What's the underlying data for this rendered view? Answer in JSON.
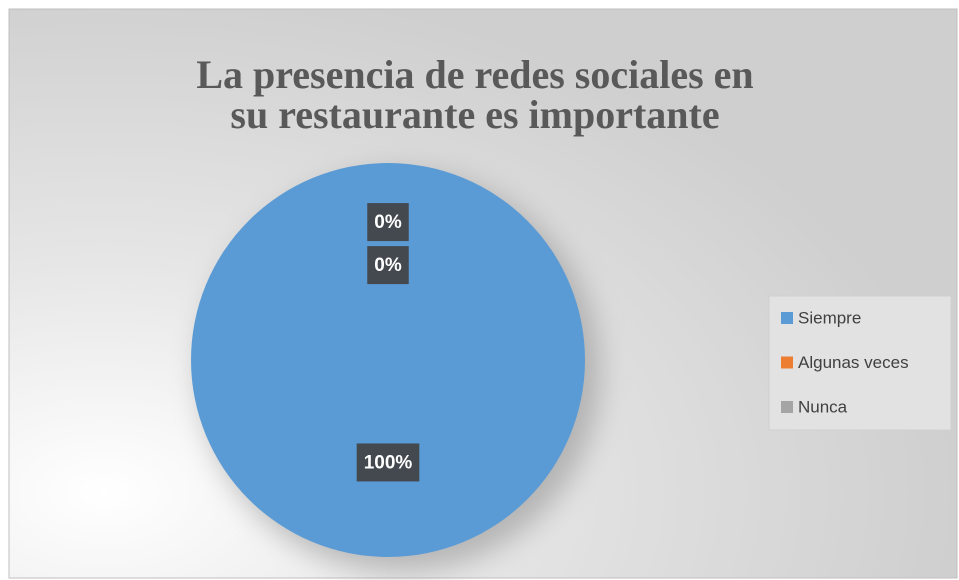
{
  "chart_data": {
    "type": "pie",
    "title": "La presencia de redes sociales en su restaurante es importante",
    "categories": [
      "Siempre",
      "Algunas veces",
      "Nunca"
    ],
    "values": [
      100,
      0,
      0
    ],
    "value_labels": [
      "100%",
      "0%",
      "0%"
    ],
    "colors": [
      "#5b9bd5",
      "#ed7d31",
      "#a5a5a5"
    ],
    "legend": "right"
  }
}
